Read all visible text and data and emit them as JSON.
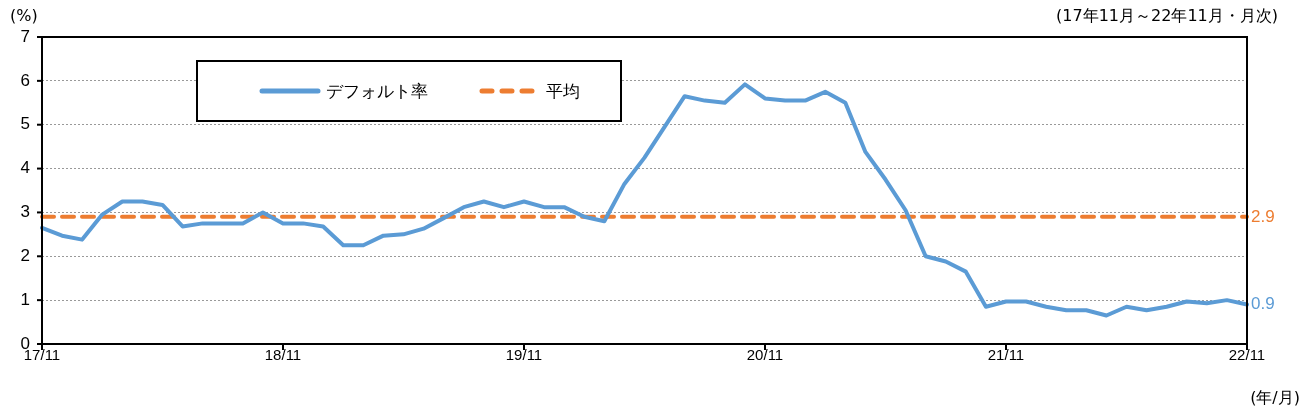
{
  "chart_data": {
    "type": "line",
    "ylabel": "(%)",
    "xlabel": "(年/月)",
    "annotations": [
      "(17年11月～22年11月・月次)"
    ],
    "categories": [
      "17/11",
      null,
      null,
      null,
      null,
      null,
      null,
      null,
      null,
      null,
      null,
      null,
      "18/11",
      null,
      null,
      null,
      null,
      null,
      null,
      null,
      null,
      null,
      null,
      null,
      "19/11",
      null,
      null,
      null,
      null,
      null,
      null,
      null,
      null,
      null,
      null,
      null,
      "20/11",
      null,
      null,
      null,
      null,
      null,
      null,
      null,
      null,
      null,
      null,
      null,
      "21/11",
      null,
      null,
      null,
      null,
      null,
      null,
      null,
      null,
      null,
      null,
      null,
      "22/11"
    ],
    "series": [
      {
        "name": "デフォルト率",
        "color": "#5b9bd5",
        "line_style": "solid",
        "values": [
          2.65,
          2.47,
          2.38,
          2.95,
          3.25,
          3.25,
          3.17,
          2.68,
          2.75,
          2.75,
          2.75,
          3.0,
          2.75,
          2.75,
          2.68,
          2.25,
          2.25,
          2.47,
          2.5,
          2.63,
          2.87,
          3.12,
          3.25,
          3.12,
          3.25,
          3.12,
          3.12,
          2.9,
          2.8,
          3.65,
          4.25,
          4.95,
          5.65,
          5.55,
          5.5,
          5.92,
          5.6,
          5.55,
          5.55,
          5.75,
          5.5,
          4.38,
          3.75,
          3.05,
          2.0,
          1.88,
          1.65,
          0.85,
          0.97,
          0.97,
          0.85,
          0.77,
          0.77,
          0.65,
          0.85,
          0.77,
          0.85,
          0.97,
          0.93,
          1.0,
          0.9
        ],
        "value_labels": [
          null,
          null,
          null,
          null,
          null,
          null,
          null,
          null,
          null,
          null,
          null,
          null,
          null,
          null,
          null,
          null,
          null,
          null,
          null,
          null,
          null,
          null,
          null,
          null,
          null,
          null,
          null,
          null,
          null,
          null,
          null,
          null,
          null,
          null,
          null,
          null,
          null,
          null,
          null,
          null,
          null,
          null,
          null,
          null,
          null,
          null,
          null,
          null,
          null,
          null,
          null,
          null,
          null,
          null,
          null,
          null,
          null,
          null,
          null,
          null,
          "0.9"
        ]
      },
      {
        "name": "平均",
        "type": "line",
        "color": "#ed7d31",
        "line_style": "dashed",
        "values": [
          2.9,
          2.9,
          2.9,
          2.9,
          2.9,
          2.9,
          2.9,
          2.9,
          2.9,
          2.9,
          2.9,
          2.9,
          2.9,
          2.9,
          2.9,
          2.9,
          2.9,
          2.9,
          2.9,
          2.9,
          2.9,
          2.9,
          2.9,
          2.9,
          2.9,
          2.9,
          2.9,
          2.9,
          2.9,
          2.9,
          2.9,
          2.9,
          2.9,
          2.9,
          2.9,
          2.9,
          2.9,
          2.9,
          2.9,
          2.9,
          2.9,
          2.9,
          2.9,
          2.9,
          2.9,
          2.9,
          2.9,
          2.9,
          2.9,
          2.9,
          2.9,
          2.9,
          2.9,
          2.9,
          2.9,
          2.9,
          2.9,
          2.9,
          2.9,
          2.9,
          2.9
        ],
        "value_labels": [
          null,
          null,
          null,
          null,
          null,
          null,
          null,
          null,
          null,
          null,
          null,
          null,
          null,
          null,
          null,
          null,
          null,
          null,
          null,
          null,
          null,
          null,
          null,
          null,
          null,
          null,
          null,
          null,
          null,
          null,
          null,
          null,
          null,
          null,
          null,
          null,
          null,
          null,
          null,
          null,
          null,
          null,
          null,
          null,
          null,
          null,
          null,
          null,
          null,
          null,
          null,
          null,
          null,
          null,
          null,
          null,
          null,
          null,
          null,
          null,
          "2.9"
        ]
      }
    ],
    "ylim": [
      0,
      7
    ],
    "yticks": [
      0,
      1,
      2,
      3,
      4,
      5,
      6,
      7
    ],
    "grid": "y",
    "legend": "top left",
    "marker": "none"
  }
}
